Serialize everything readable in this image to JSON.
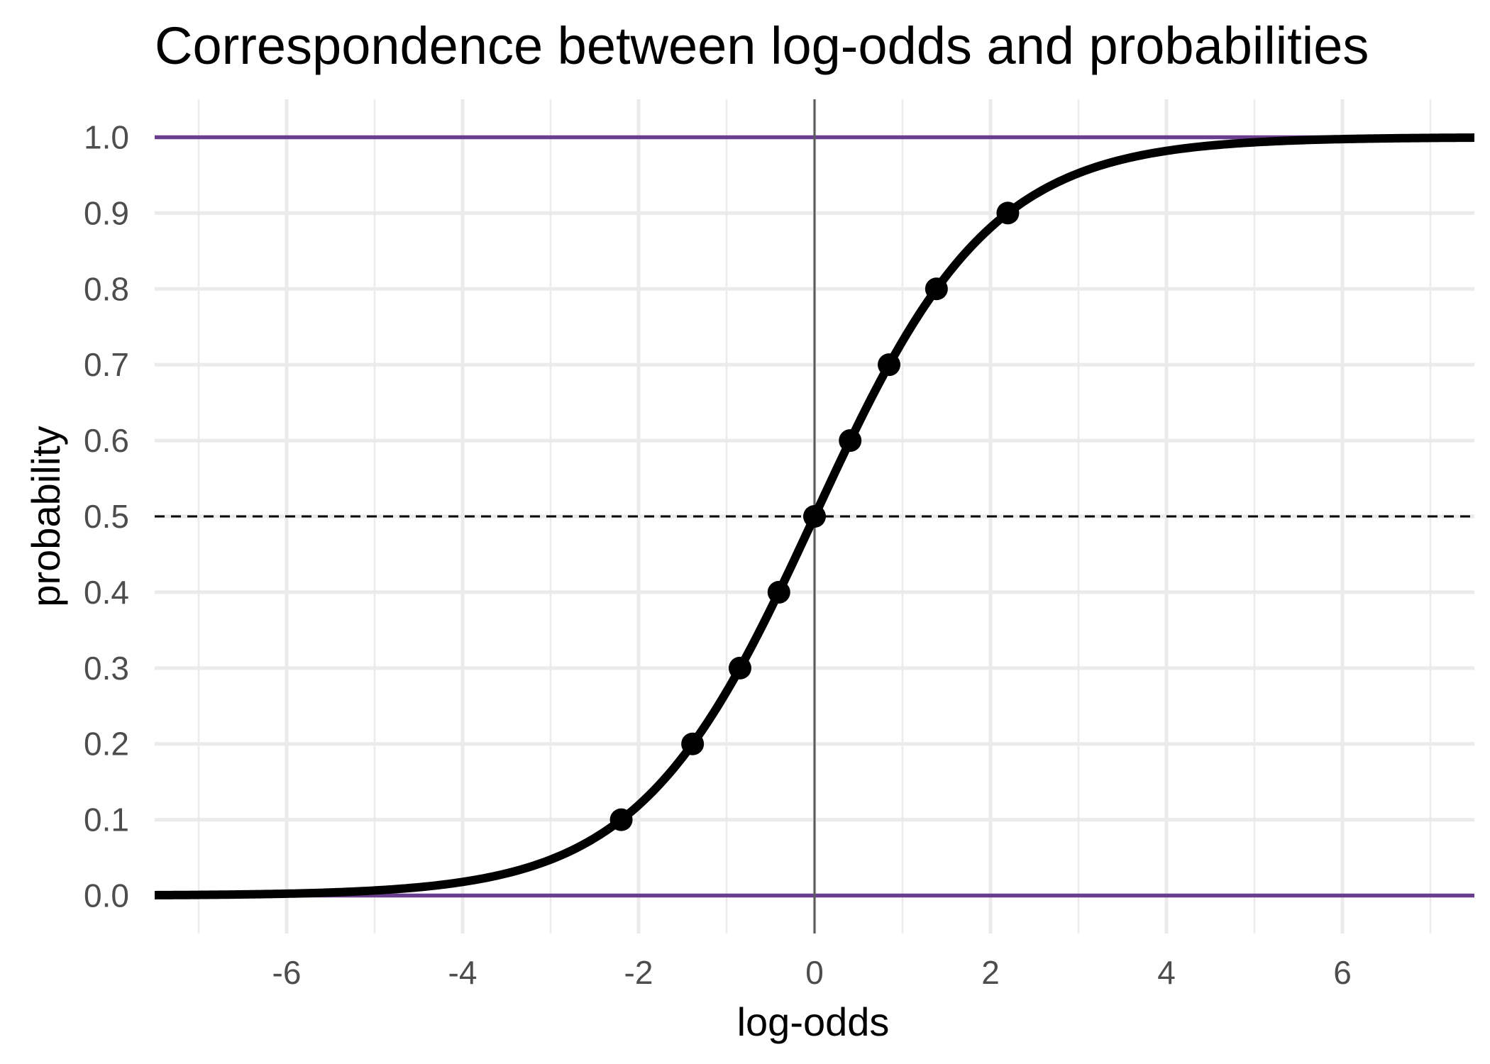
{
  "chart_data": {
    "type": "line",
    "title": "Correspondence between log-odds and probabilities",
    "xlabel": "log-odds",
    "ylabel": "probability",
    "xlim": [
      -7.5,
      7.5
    ],
    "ylim": [
      -0.05,
      1.05
    ],
    "x_ticks": [
      -6,
      -4,
      -2,
      0,
      2,
      4,
      6
    ],
    "x_tick_labels": [
      "-6",
      "-4",
      "-2",
      "0",
      "2",
      "4",
      "6"
    ],
    "y_ticks": [
      0.0,
      0.1,
      0.2,
      0.3,
      0.4,
      0.5,
      0.6,
      0.7,
      0.8,
      0.9,
      1.0
    ],
    "y_tick_labels": [
      "0.0",
      "0.1",
      "0.2",
      "0.3",
      "0.4",
      "0.5",
      "0.6",
      "0.7",
      "0.8",
      "0.9",
      "1.0"
    ],
    "grid": true,
    "curve": {
      "function": "logistic",
      "x_range": [
        -7.5,
        7.5
      ],
      "color": "#000000"
    },
    "points": [
      {
        "x": -2.197,
        "y": 0.1
      },
      {
        "x": -1.386,
        "y": 0.2
      },
      {
        "x": -0.847,
        "y": 0.3
      },
      {
        "x": -0.405,
        "y": 0.4
      },
      {
        "x": 0.0,
        "y": 0.5
      },
      {
        "x": 0.405,
        "y": 0.6
      },
      {
        "x": 0.847,
        "y": 0.7
      },
      {
        "x": 1.386,
        "y": 0.8
      },
      {
        "x": 2.197,
        "y": 0.9
      }
    ],
    "reference_lines": [
      {
        "orientation": "horizontal",
        "value": 0.0,
        "style": "solid",
        "color": "#6a3d8f"
      },
      {
        "orientation": "horizontal",
        "value": 1.0,
        "style": "solid",
        "color": "#6a3d8f"
      },
      {
        "orientation": "horizontal",
        "value": 0.5,
        "style": "dashed",
        "color": "#000000"
      },
      {
        "orientation": "vertical",
        "value": 0.0,
        "style": "solid",
        "color": "#5a5a5a"
      }
    ],
    "colors": {
      "grid": "#ebebeb",
      "tick_text": "#4d4d4d"
    }
  }
}
